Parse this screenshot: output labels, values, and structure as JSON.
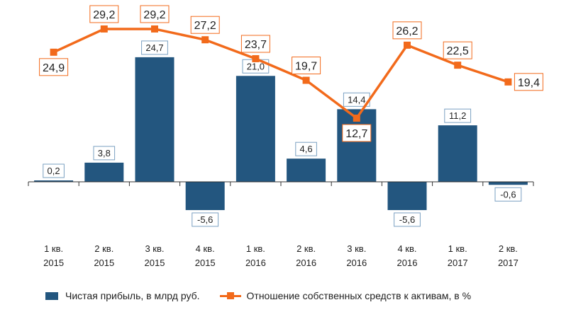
{
  "chart_data": {
    "type": "bar+line",
    "categories": [
      [
        "1 кв.",
        "2015"
      ],
      [
        "2 кв.",
        "2015"
      ],
      [
        "3 кв.",
        "2015"
      ],
      [
        "4 кв.",
        "2015"
      ],
      [
        "1 кв.",
        "2016"
      ],
      [
        "2 кв.",
        "2016"
      ],
      [
        "3 кв.",
        "2016"
      ],
      [
        "4 кв.",
        "2016"
      ],
      [
        "1 кв.",
        "2017"
      ],
      [
        "2 кв.",
        "2017"
      ]
    ],
    "series": [
      {
        "name": "Чистая прибыль, в млрд руб.",
        "type": "bar",
        "color": "#23567f",
        "values": [
          0.2,
          3.8,
          24.7,
          -5.6,
          21.0,
          4.6,
          14.4,
          -5.6,
          11.2,
          -0.6
        ],
        "labels": [
          "0,2",
          "3,8",
          "24,7",
          "-5,6",
          "21,0",
          "4,6",
          "14,4",
          "-5,6",
          "11,2",
          "-0,6"
        ]
      },
      {
        "name": "Отношение собственных средств к активам, в %",
        "type": "line",
        "color": "#f26a1b",
        "values": [
          24.9,
          29.2,
          29.2,
          27.2,
          23.7,
          19.7,
          12.7,
          26.2,
          22.5,
          19.4
        ],
        "labels": [
          "24,9",
          "29,2",
          "29,2",
          "27,2",
          "23,7",
          "19,7",
          "12,7",
          "26,2",
          "22,5",
          "19,4"
        ]
      }
    ],
    "legend_position": "bottom",
    "grid": false
  }
}
